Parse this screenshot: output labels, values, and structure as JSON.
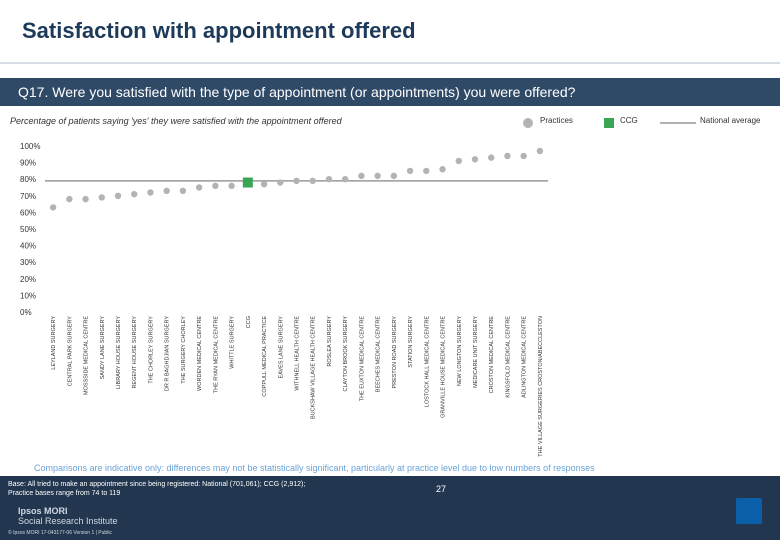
{
  "page": {
    "title": "Satisfaction with appointment offered",
    "question": "Q17. Were you satisfied with the type of appointment (or appointments) you were offered?",
    "subtitle": "Percentage of patients saying 'yes' they were satisfied with the appointment offered",
    "footnote": "Comparisons are indicative only: differences may not be statistically significant, particularly at practice level due to low numbers of responses",
    "base_line1": "Base: All tried to make an appointment since being registered: National (701,061); CCG (2,912);",
    "base_line2": "Practice bases range from 74 to 119",
    "logo_line1": "Ipsos MORI",
    "logo_line2": "Social Research Institute",
    "page_number": "27",
    "version_text": "© Ipsos MORI      17-043177-06 Version 1 | Public"
  },
  "legend": {
    "practices": "Practices",
    "ccg": "CCG",
    "national": "National average"
  },
  "colors": {
    "practice": "#b3b3b3",
    "ccg": "#3aa655",
    "national": "#999999",
    "header_bar": "#2f4a66",
    "footnote": "#6aa2d8"
  },
  "chart_data": {
    "type": "scatter",
    "title": "Percentage of patients saying 'yes' they were satisfied with the appointment offered",
    "ylim": [
      0,
      100
    ],
    "yticks": [
      "0%",
      "10%",
      "20%",
      "30%",
      "40%",
      "50%",
      "60%",
      "70%",
      "80%",
      "90%",
      "100%"
    ],
    "national_average": 79,
    "categories": [
      "LEYLAND SURGERY",
      "CENTRAL PARK SURGERY",
      "MOSSSIDE MEDICAL CENTRE",
      "SANDY LANE SURGERY",
      "LIBRARY HOUSE SURGERY",
      "REGENT HOUSE SURGERY",
      "THE CHORLEY SURGERY",
      "DR R BAGHDJIAN SURGERY",
      "THE SURGERY CHORLEY",
      "WORDEN MEDICAL CENTRE",
      "THE RYAN MEDICAL CENTRE",
      "WHITTLE SURGERY",
      "CCG",
      "COPPULL MEDICAL PRACTICE",
      "EAVES LANE SURGERY",
      "WITHNELL HEALTH CENTRE",
      "BUCKSHAW VILLAGE HEALTH CENTRE",
      "ROSLEA SURGERY",
      "CLAYTON BROOK SURGERY",
      "THE EUXTON MEDICAL CENTRE",
      "BEECHES MEDICAL CENTRE",
      "PRESTON ROAD SURGERY",
      "STATION SURGERY",
      "LOSTOCK HALL MEDICAL CENTRE",
      "GRANVILLE HOUSE MEDICAL CENTRE",
      "NEW LONGTON SURGERY",
      "MEDICARE UNIT SURGERY",
      "CROSTON MEDICAL CENTRE",
      "KINGSFOLD MEDICAL CENTRE",
      "ADLINGTON MEDICAL CENTRE",
      "THE VILLAGE SURGERIES CROSTON/ABECCLESTON"
    ],
    "values": [
      63,
      68,
      68,
      69,
      70,
      71,
      72,
      73,
      73,
      75,
      76,
      76,
      78,
      77,
      78,
      79,
      79,
      80,
      80,
      82,
      82,
      82,
      85,
      85,
      86,
      91,
      92,
      93,
      94,
      94,
      97
    ],
    "ccg_index": 12
  }
}
